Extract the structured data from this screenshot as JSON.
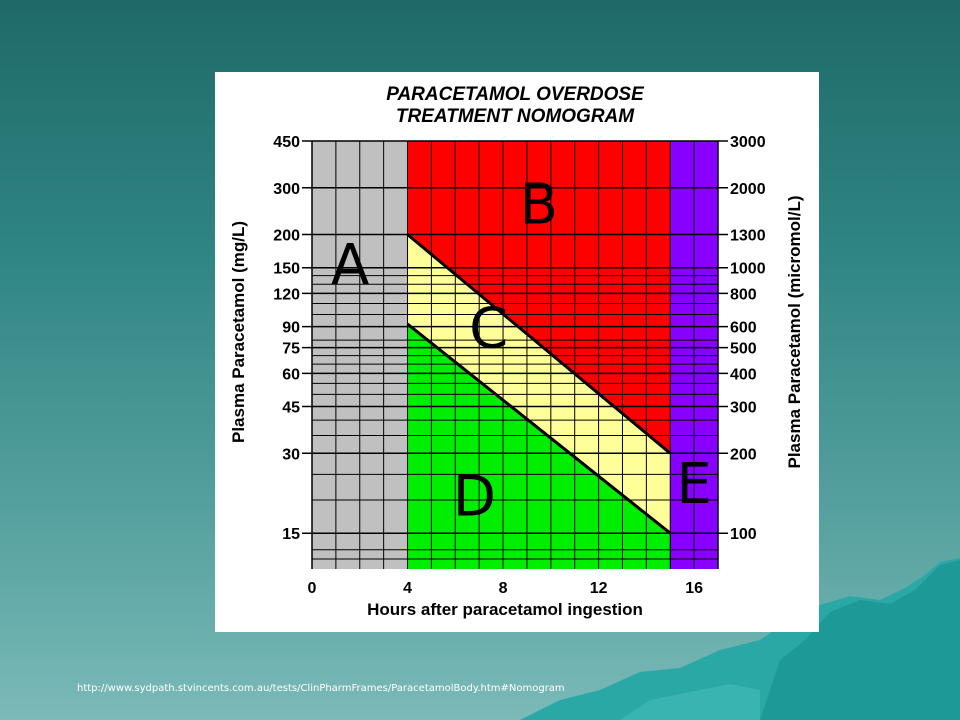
{
  "source_url": "http://www.sydpath.stvincents.com.au/tests/ClinPharmFrames/ParacetamolBody.htm#Nomogram",
  "colors": {
    "background": "#2f8583",
    "region_A": "#c0c0c0",
    "region_B": "#ff0000",
    "region_C": "#ffff99",
    "region_D": "#00ee00",
    "region_E": "#8800ff",
    "mountain": "#2aa8a5"
  },
  "chart_data": {
    "type": "area",
    "title_lines": [
      "PARACETAMOL OVERDOSE",
      "TREATMENT NOMOGRAM"
    ],
    "xlabel": "Hours after paracetamol ingestion",
    "ylabel_left": "Plasma Paracetamol (mg/L)",
    "ylabel_right": "Plasma Paracetamol (micromol/L)",
    "x_ticks": [
      "0",
      "4",
      "8",
      "12",
      "16"
    ],
    "xlim": [
      0,
      17
    ],
    "y_scale": "log",
    "ylim": [
      11,
      450
    ],
    "y_ticks_left": [
      "450",
      "300",
      "200",
      "150",
      "120",
      "90",
      "75",
      "60",
      "45",
      "30",
      "15"
    ],
    "y_ticks_right": [
      "3000",
      "2000",
      "1300",
      "1000",
      "800",
      "600",
      "500",
      "400",
      "300",
      "200",
      "100"
    ],
    "grid": true,
    "treatment_line_upper": {
      "x": [
        4,
        15
      ],
      "y": [
        200,
        30
      ]
    },
    "treatment_line_lower": {
      "x": [
        4,
        15
      ],
      "y": [
        92,
        15
      ]
    },
    "regions": [
      {
        "label": "A",
        "x_range": [
          0,
          4
        ]
      },
      {
        "label": "B",
        "x_range": [
          4,
          15
        ]
      },
      {
        "label": "C",
        "x_range": [
          4,
          15
        ]
      },
      {
        "label": "D",
        "x_range": [
          4,
          15
        ]
      },
      {
        "label": "E",
        "x_range": [
          15,
          17
        ]
      }
    ]
  }
}
